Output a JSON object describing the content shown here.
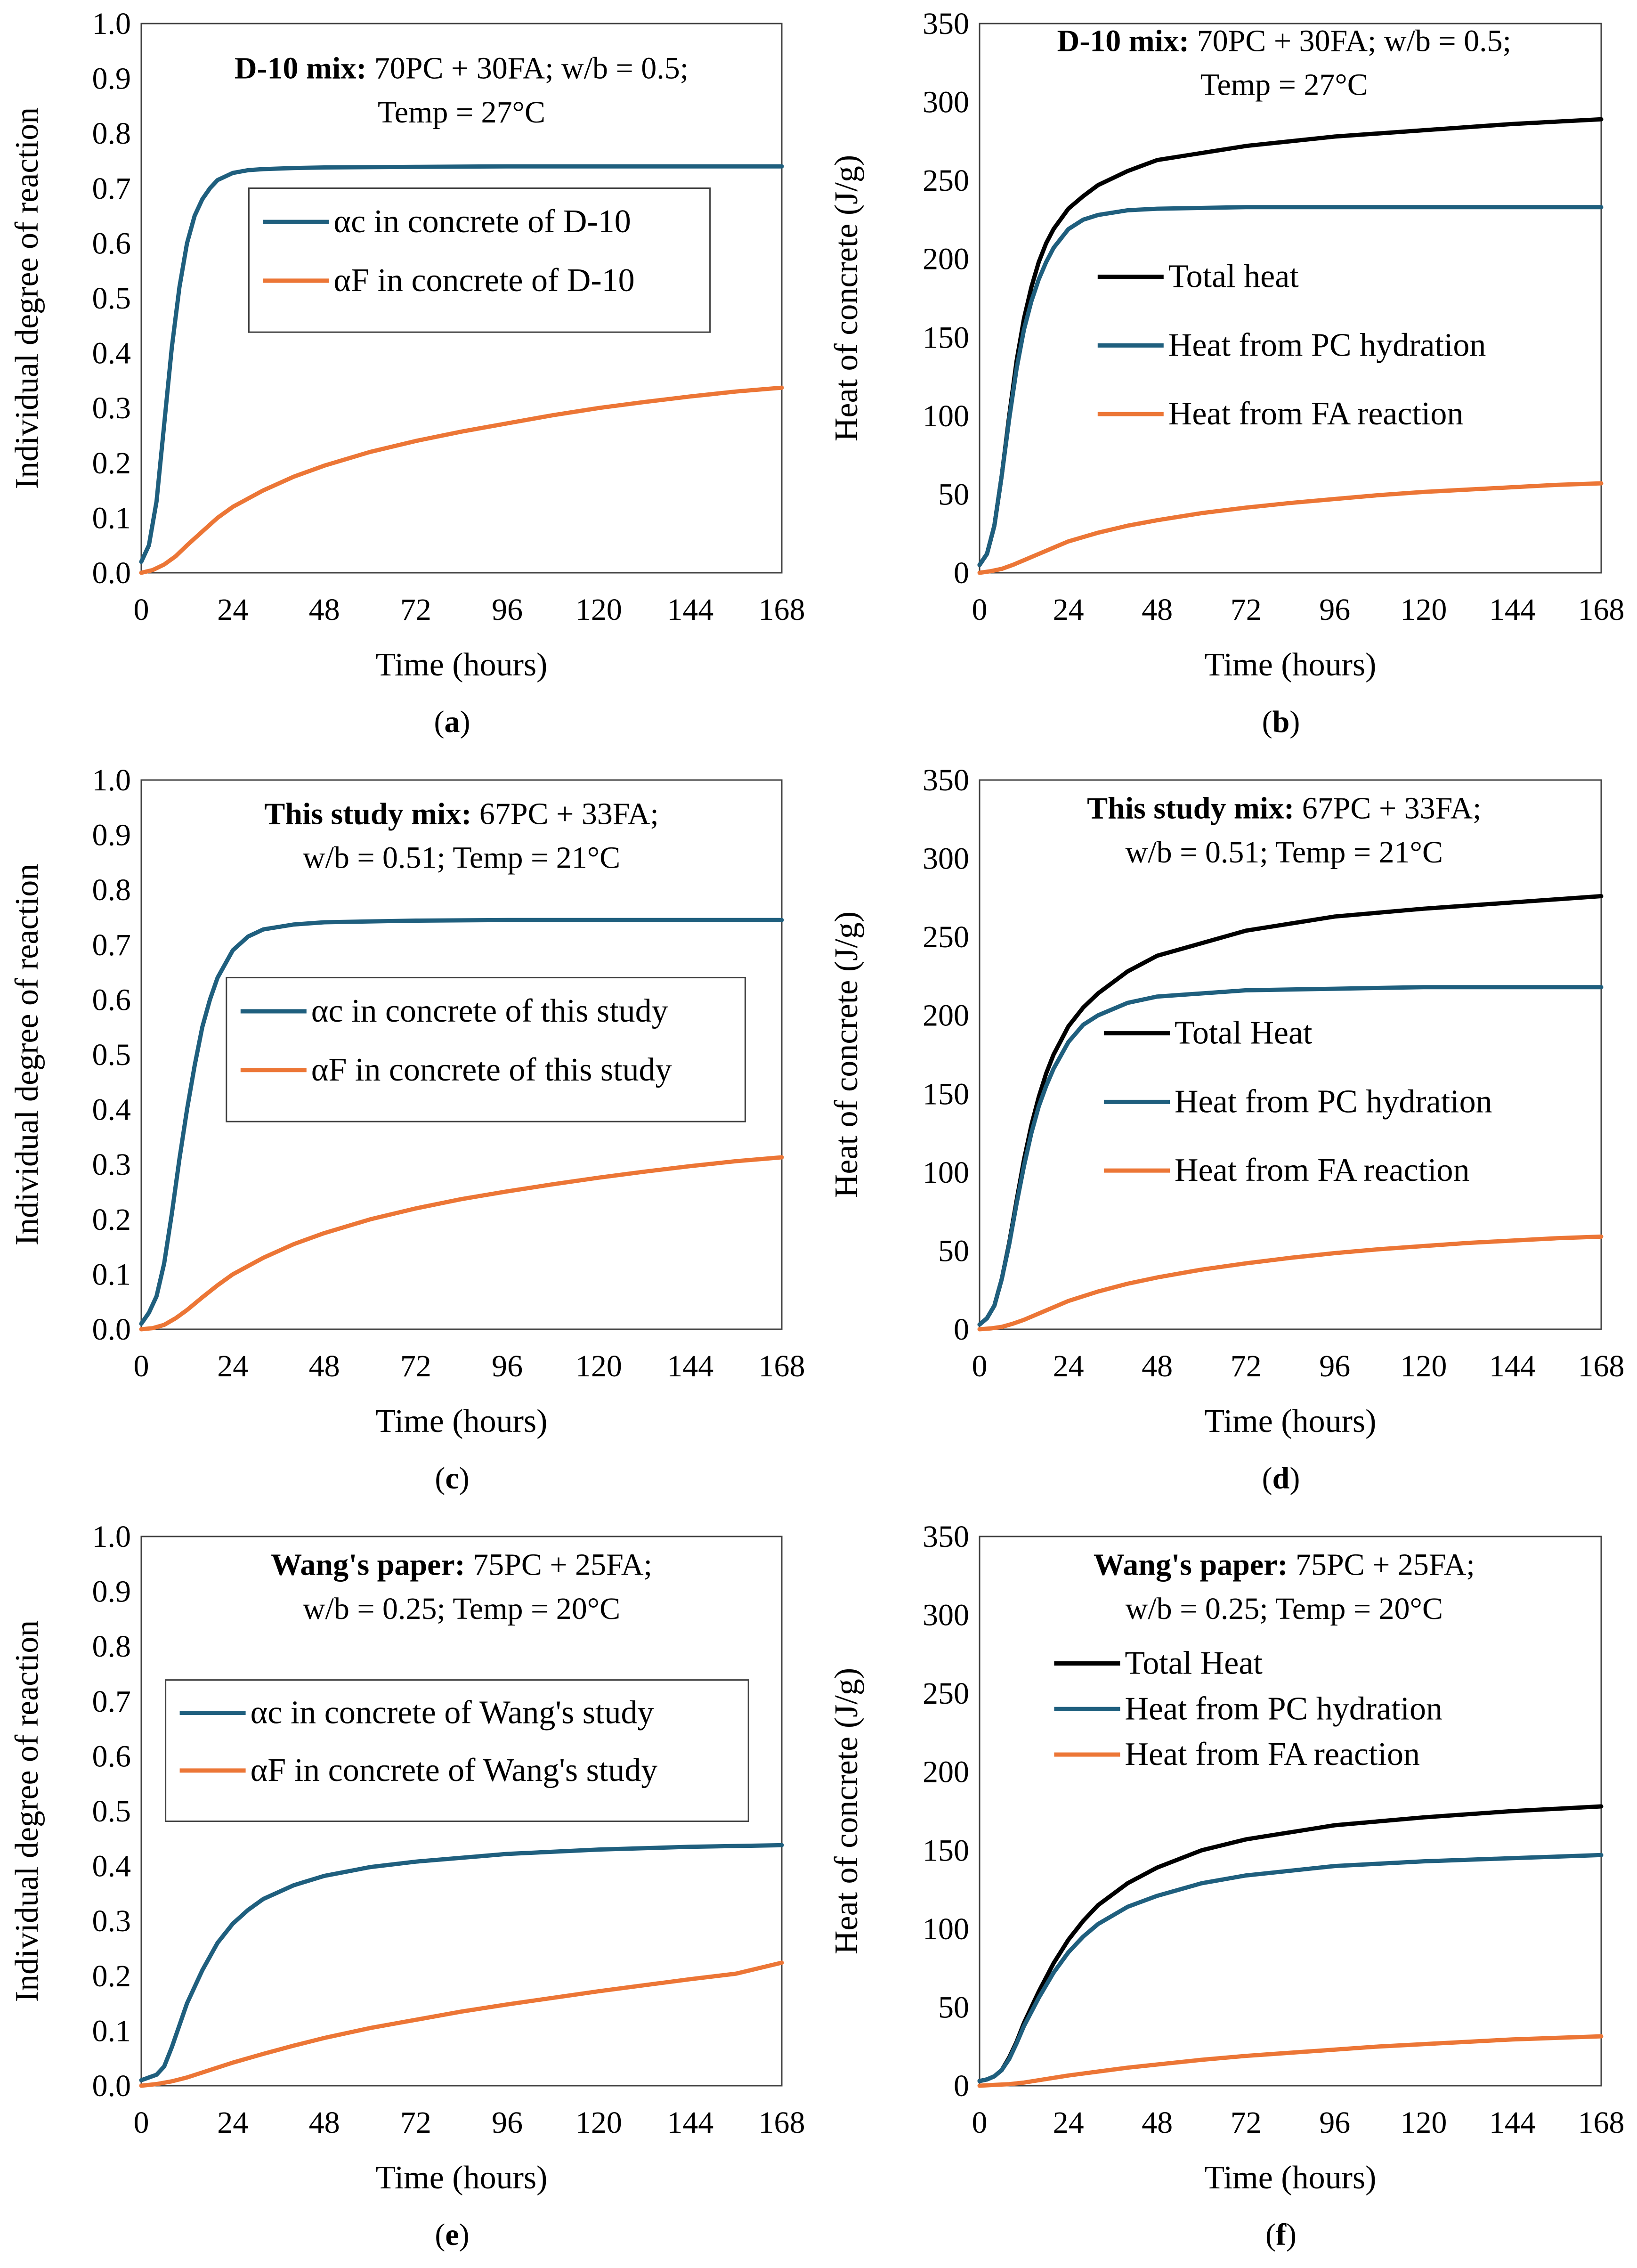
{
  "colors": {
    "total": "#000000",
    "pc": "#1f5f7e",
    "fa": "#ec7636",
    "frame": "#404040"
  },
  "chart_data": [
    {
      "id": "a",
      "type": "line",
      "caption": "(a)",
      "caption_letter": "a",
      "xlabel": "Time (hours)",
      "ylabel": "Individual degree of reaction",
      "xlim": [
        0,
        168
      ],
      "ylim": [
        0,
        1.0
      ],
      "xticks": [
        "0",
        "24",
        "48",
        "72",
        "96",
        "120",
        "144",
        "168"
      ],
      "yticks": [
        "0.0",
        "0.1",
        "0.2",
        "0.3",
        "0.4",
        "0.5",
        "0.6",
        "0.7",
        "0.8",
        "0.9",
        "1.0"
      ],
      "annotation": {
        "bold": "D-10 mix:",
        "line1": " 70PC + 30FA; w/b = 0.5;",
        "line2": "Temp = 27°C"
      },
      "legend": [
        "αc in concrete of D-10",
        "αF in concrete of D-10"
      ],
      "series": [
        {
          "name": "αc in concrete of D-10",
          "color_key": "pc",
          "x": [
            0,
            2,
            4,
            6,
            8,
            10,
            12,
            14,
            16,
            18,
            20,
            24,
            28,
            32,
            40,
            48,
            72,
            96,
            120,
            144,
            168
          ],
          "y": [
            0.02,
            0.05,
            0.13,
            0.27,
            0.41,
            0.52,
            0.6,
            0.65,
            0.68,
            0.7,
            0.715,
            0.728,
            0.733,
            0.735,
            0.737,
            0.738,
            0.739,
            0.74,
            0.74,
            0.74,
            0.74
          ]
        },
        {
          "name": "αF in concrete of D-10",
          "color_key": "fa",
          "x": [
            0,
            3,
            6,
            9,
            12,
            16,
            20,
            24,
            32,
            40,
            48,
            60,
            72,
            84,
            96,
            108,
            120,
            132,
            144,
            156,
            168
          ],
          "y": [
            0,
            0.005,
            0.015,
            0.03,
            0.05,
            0.075,
            0.1,
            0.12,
            0.15,
            0.175,
            0.195,
            0.22,
            0.24,
            0.257,
            0.272,
            0.287,
            0.3,
            0.311,
            0.321,
            0.33,
            0.337
          ]
        }
      ]
    },
    {
      "id": "b",
      "type": "line",
      "caption": "(b)",
      "caption_letter": "b",
      "xlabel": "Time (hours)",
      "ylabel": "Heat of concrete (J/g)",
      "xlim": [
        0,
        168
      ],
      "ylim": [
        0,
        350
      ],
      "xticks": [
        "0",
        "24",
        "48",
        "72",
        "96",
        "120",
        "144",
        "168"
      ],
      "yticks": [
        "0",
        "50",
        "100",
        "150",
        "200",
        "250",
        "300",
        "350"
      ],
      "annotation": {
        "bold": "D-10 mix:",
        "line1": " 70PC + 30FA; w/b = 0.5;",
        "line2": "Temp = 27°C"
      },
      "legend": [
        "Total heat",
        "Heat from PC hydration",
        "Heat from FA reaction"
      ],
      "series": [
        {
          "name": "Total heat",
          "color_key": "total",
          "x": [
            0,
            2,
            4,
            6,
            8,
            10,
            12,
            14,
            16,
            18,
            20,
            24,
            28,
            32,
            40,
            48,
            72,
            96,
            120,
            144,
            168
          ],
          "y": [
            5,
            12,
            30,
            62,
            100,
            135,
            162,
            182,
            198,
            210,
            219,
            232,
            240,
            247,
            256,
            263,
            272,
            278,
            282,
            286,
            289
          ]
        },
        {
          "name": "Heat from PC hydration",
          "color_key": "pc",
          "x": [
            0,
            2,
            4,
            6,
            8,
            10,
            12,
            14,
            16,
            18,
            20,
            24,
            28,
            32,
            40,
            48,
            72,
            96,
            120,
            144,
            168
          ],
          "y": [
            5,
            12,
            30,
            62,
            98,
            130,
            155,
            173,
            187,
            198,
            207,
            219,
            225,
            228,
            231,
            232,
            233,
            233,
            233,
            233,
            233
          ]
        },
        {
          "name": "Heat from FA reaction",
          "color_key": "fa",
          "x": [
            0,
            3,
            6,
            9,
            12,
            16,
            20,
            24,
            32,
            40,
            48,
            60,
            72,
            84,
            96,
            108,
            120,
            132,
            144,
            156,
            168
          ],
          "y": [
            0,
            1,
            2.5,
            5,
            8,
            12,
            16,
            20,
            25.5,
            30,
            33.5,
            38,
            41.5,
            44.5,
            47,
            49.5,
            51.5,
            53,
            54.5,
            56,
            57
          ]
        }
      ]
    },
    {
      "id": "c",
      "type": "line",
      "caption": "(c)",
      "caption_letter": "c",
      "xlabel": "Time (hours)",
      "ylabel": "Individual degree of reaction",
      "xlim": [
        0,
        168
      ],
      "ylim": [
        0,
        1.0
      ],
      "xticks": [
        "0",
        "24",
        "48",
        "72",
        "96",
        "120",
        "144",
        "168"
      ],
      "yticks": [
        "0.0",
        "0.1",
        "0.2",
        "0.3",
        "0.4",
        "0.5",
        "0.6",
        "0.7",
        "0.8",
        "0.9",
        "1.0"
      ],
      "annotation": {
        "bold": "This study mix:",
        "line1": " 67PC + 33FA;",
        "line2": "w/b = 0.51; Temp = 21°C"
      },
      "legend": [
        "αc in concrete of this study",
        "αF in concrete of this study"
      ],
      "series": [
        {
          "name": "αc in concrete of this study",
          "color_key": "pc",
          "x": [
            0,
            2,
            4,
            6,
            8,
            10,
            12,
            14,
            16,
            18,
            20,
            24,
            28,
            32,
            40,
            48,
            72,
            96,
            120,
            144,
            168
          ],
          "y": [
            0.01,
            0.03,
            0.06,
            0.12,
            0.21,
            0.31,
            0.4,
            0.48,
            0.55,
            0.6,
            0.64,
            0.69,
            0.715,
            0.728,
            0.737,
            0.741,
            0.744,
            0.745,
            0.745,
            0.745,
            0.745
          ]
        },
        {
          "name": "αF in concrete of this study",
          "color_key": "fa",
          "x": [
            0,
            3,
            6,
            9,
            12,
            16,
            20,
            24,
            32,
            40,
            48,
            60,
            72,
            84,
            96,
            108,
            120,
            132,
            144,
            156,
            168
          ],
          "y": [
            0,
            0.002,
            0.008,
            0.02,
            0.035,
            0.058,
            0.08,
            0.1,
            0.13,
            0.155,
            0.175,
            0.2,
            0.22,
            0.237,
            0.251,
            0.264,
            0.276,
            0.287,
            0.297,
            0.306,
            0.313
          ]
        }
      ]
    },
    {
      "id": "d",
      "type": "line",
      "caption": "(d)",
      "caption_letter": "d",
      "xlabel": "Time (hours)",
      "ylabel": "Heat of concrete (J/g)",
      "xlim": [
        0,
        168
      ],
      "ylim": [
        0,
        350
      ],
      "xticks": [
        "0",
        "24",
        "48",
        "72",
        "96",
        "120",
        "144",
        "168"
      ],
      "yticks": [
        "0",
        "50",
        "100",
        "150",
        "200",
        "250",
        "300",
        "350"
      ],
      "annotation": {
        "bold": "This study mix:",
        "line1": " 67PC + 33FA;",
        "line2": "w/b = 0.51; Temp = 21°C"
      },
      "legend": [
        "Total Heat",
        "Heat from PC hydration",
        "Heat from FA reaction"
      ],
      "series": [
        {
          "name": "Total Heat",
          "color_key": "total",
          "x": [
            0,
            2,
            4,
            6,
            8,
            10,
            12,
            14,
            16,
            18,
            20,
            24,
            28,
            32,
            40,
            48,
            72,
            96,
            120,
            144,
            168
          ],
          "y": [
            3,
            7,
            15,
            32,
            55,
            82,
            108,
            130,
            148,
            163,
            175,
            193,
            205,
            214,
            228,
            238,
            254,
            263,
            268,
            272,
            276
          ]
        },
        {
          "name": "Heat from PC hydration",
          "color_key": "pc",
          "x": [
            0,
            2,
            4,
            6,
            8,
            10,
            12,
            14,
            16,
            18,
            20,
            24,
            28,
            32,
            40,
            48,
            72,
            96,
            120,
            144,
            168
          ],
          "y": [
            3,
            7,
            15,
            32,
            54,
            80,
            104,
            125,
            142,
            155,
            166,
            183,
            194,
            200,
            208,
            212,
            216,
            217,
            218,
            218,
            218
          ]
        },
        {
          "name": "Heat from FA reaction",
          "color_key": "fa",
          "x": [
            0,
            3,
            6,
            9,
            12,
            16,
            20,
            24,
            32,
            40,
            48,
            60,
            72,
            84,
            96,
            108,
            120,
            132,
            144,
            156,
            168
          ],
          "y": [
            0,
            0.5,
            1.5,
            3.5,
            6,
            10,
            14,
            18,
            24,
            29,
            33,
            38,
            42,
            45.5,
            48.5,
            51,
            53,
            55,
            56.5,
            58,
            59
          ]
        }
      ]
    },
    {
      "id": "e",
      "type": "line",
      "caption": "(e)",
      "caption_letter": "e",
      "xlabel": "Time (hours)",
      "ylabel": "Individual degree of reaction",
      "xlim": [
        0,
        168
      ],
      "ylim": [
        0,
        1.0
      ],
      "xticks": [
        "0",
        "24",
        "48",
        "72",
        "96",
        "120",
        "144",
        "168"
      ],
      "yticks": [
        "0.0",
        "0.1",
        "0.2",
        "0.3",
        "0.4",
        "0.5",
        "0.6",
        "0.7",
        "0.8",
        "0.9",
        "1.0"
      ],
      "annotation": {
        "bold": "Wang's paper:",
        "line1": " 75PC + 25FA;",
        "line2": "w/b = 0.25; Temp = 20°C"
      },
      "legend": [
        "αc in concrete of Wang's study",
        "αF in concrete of Wang's study"
      ],
      "series": [
        {
          "name": "αc in concrete of Wang's study",
          "color_key": "pc",
          "x": [
            0,
            2,
            4,
            6,
            8,
            10,
            12,
            16,
            20,
            24,
            28,
            32,
            40,
            48,
            60,
            72,
            96,
            120,
            144,
            168
          ],
          "y": [
            0.01,
            0.015,
            0.02,
            0.035,
            0.07,
            0.11,
            0.15,
            0.21,
            0.26,
            0.295,
            0.32,
            0.34,
            0.365,
            0.382,
            0.398,
            0.408,
            0.422,
            0.43,
            0.435,
            0.438
          ]
        },
        {
          "name": "αF in concrete of Wang's study",
          "color_key": "fa",
          "x": [
            0,
            4,
            8,
            12,
            16,
            20,
            24,
            32,
            40,
            48,
            60,
            72,
            84,
            96,
            108,
            120,
            132,
            144,
            156,
            168
          ],
          "y": [
            0,
            0.003,
            0.008,
            0.015,
            0.024,
            0.033,
            0.042,
            0.058,
            0.073,
            0.087,
            0.105,
            0.12,
            0.135,
            0.148,
            0.16,
            0.172,
            0.183,
            0.194,
            0.204,
            0.224
          ]
        }
      ]
    },
    {
      "id": "f",
      "type": "line",
      "caption": "(f)",
      "caption_letter": "f",
      "xlabel": "Time (hours)",
      "ylabel": "Heat of concrete (J/g)",
      "xlim": [
        0,
        168
      ],
      "ylim": [
        0,
        350
      ],
      "xticks": [
        "0",
        "24",
        "48",
        "72",
        "96",
        "120",
        "144",
        "168"
      ],
      "yticks": [
        "0",
        "50",
        "100",
        "150",
        "200",
        "250",
        "300",
        "350"
      ],
      "annotation": {
        "bold": "Wang's paper:",
        "line1": " 75PC + 25FA;",
        "line2": "w/b = 0.25; Temp = 20°C"
      },
      "legend": [
        "Total Heat",
        "Heat from PC hydration",
        "Heat from FA reaction"
      ],
      "series": [
        {
          "name": "Total Heat",
          "color_key": "total",
          "x": [
            0,
            2,
            4,
            6,
            8,
            10,
            12,
            16,
            20,
            24,
            28,
            32,
            40,
            48,
            60,
            72,
            96,
            120,
            144,
            168
          ],
          "y": [
            3,
            4,
            6,
            10,
            18,
            28,
            40,
            60,
            78,
            93,
            105,
            115,
            129,
            139,
            150,
            157,
            166,
            171,
            175,
            178
          ]
        },
        {
          "name": "Heat from PC hydration",
          "color_key": "pc",
          "x": [
            0,
            2,
            4,
            6,
            8,
            10,
            12,
            16,
            20,
            24,
            28,
            32,
            40,
            48,
            60,
            72,
            96,
            120,
            144,
            168
          ],
          "y": [
            3,
            4,
            6,
            10,
            17,
            27,
            38,
            56,
            72,
            85,
            95,
            103,
            114,
            121,
            129,
            134,
            140,
            143,
            145,
            147
          ]
        },
        {
          "name": "Heat from FA reaction",
          "color_key": "fa",
          "x": [
            0,
            4,
            8,
            12,
            16,
            20,
            24,
            32,
            40,
            48,
            60,
            72,
            84,
            96,
            108,
            120,
            132,
            144,
            156,
            168
          ],
          "y": [
            0,
            0.5,
            1,
            2,
            3.5,
            5,
            6.5,
            9,
            11.5,
            13.5,
            16.5,
            19,
            21,
            23,
            25,
            26.5,
            28,
            29.5,
            30.5,
            31.5
          ]
        }
      ]
    }
  ]
}
